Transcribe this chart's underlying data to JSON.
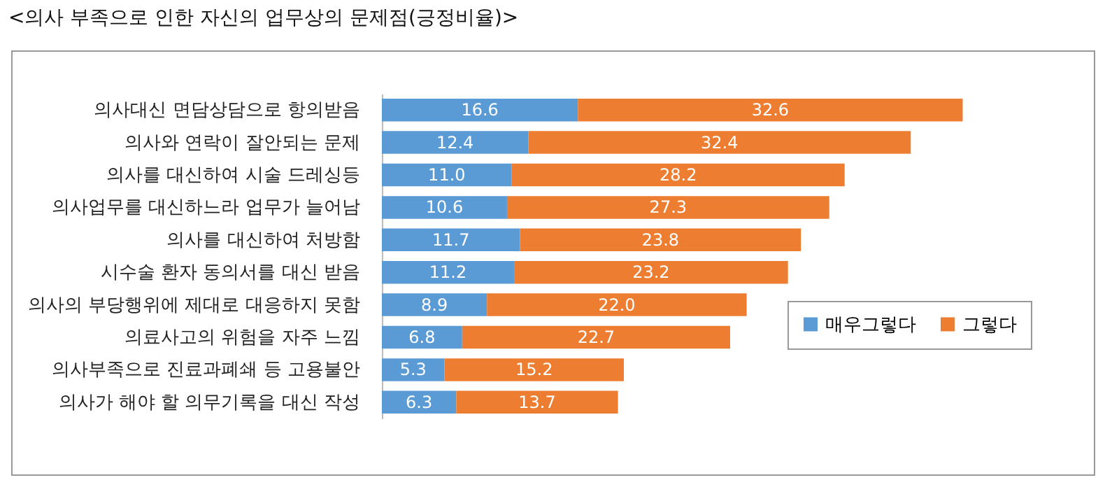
{
  "chart_data": {
    "type": "bar",
    "title": "<의사 부족으로 인한 자신의 업무상의 문제점(긍정비율)>",
    "orientation": "horizontal",
    "stacked": true,
    "legend": "bottom right",
    "grid": false,
    "categories": [
      "의사대신 면담상담으로 항의받음",
      "의사와 연락이 잘안되는 문제",
      "의사를 대신하여 시술 드레싱등",
      "의사업무를 대신하느라 업무가 늘어남",
      "의사를 대신하여 처방함",
      "시수술 환자 동의서를 대신 받음",
      "의사의 부당행위에 제대로 대응하지 못함",
      "의료사고의 위험을 자주 느낌",
      "의사부족으로 진료과폐쇄 등 고용불안",
      "의사가 해야 할 의무기록을 대신 작성"
    ],
    "series": [
      {
        "name": "매우그렇다",
        "color": "#5b9bd5",
        "values": [
          16.6,
          12.4,
          11.0,
          10.6,
          11.7,
          11.2,
          8.9,
          6.8,
          5.3,
          6.3
        ],
        "value_labels": [
          "16.6",
          "12.4",
          "11.0",
          "10.6",
          "11.7",
          "11.2",
          "8.9",
          "6.8",
          "5.3",
          "6.3"
        ]
      },
      {
        "name": "그렇다",
        "color": "#ed7d31",
        "values": [
          32.6,
          32.4,
          28.2,
          27.3,
          23.8,
          23.2,
          22.0,
          22.7,
          15.2,
          13.7
        ],
        "value_labels": [
          "32.6",
          "32.4",
          "28.2",
          "27.3",
          "23.8",
          "23.2",
          "22.0",
          "22.7",
          "15.2",
          "13.7"
        ]
      }
    ]
  }
}
